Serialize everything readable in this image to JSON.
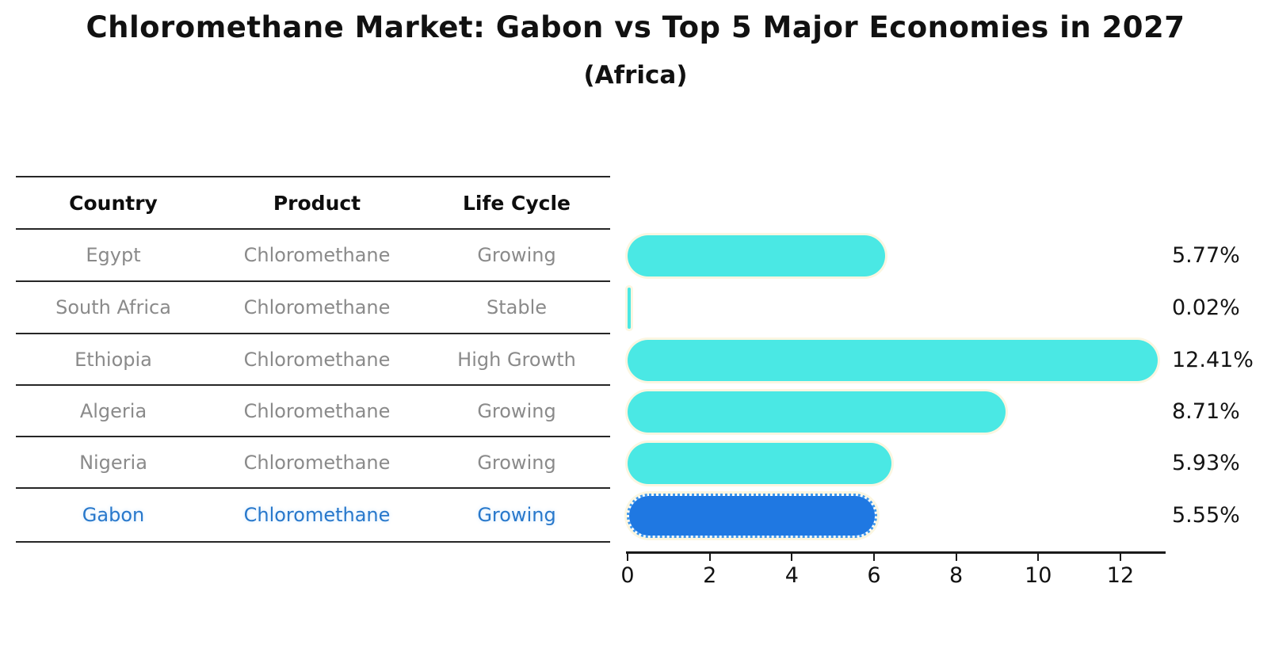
{
  "title": "Chloromethane Market: Gabon vs Top 5 Major Economies in 2027",
  "subtitle": "(Africa)",
  "table": {
    "headers": [
      "Country",
      "Product",
      "Life Cycle"
    ],
    "rows": [
      {
        "country": "Egypt",
        "product": "Chloromethane",
        "life_cycle": "Growing",
        "highlight": false
      },
      {
        "country": "South Africa",
        "product": "Chloromethane",
        "life_cycle": "Stable",
        "highlight": false
      },
      {
        "country": "Ethiopia",
        "product": "Chloromethane",
        "life_cycle": "High Growth",
        "highlight": false
      },
      {
        "country": "Algeria",
        "product": "Chloromethane",
        "life_cycle": "Growing",
        "highlight": false
      },
      {
        "country": "Nigeria",
        "product": "Chloromethane",
        "life_cycle": "Growing",
        "highlight": false
      },
      {
        "country": "Gabon",
        "product": "Chloromethane",
        "life_cycle": "Growing",
        "highlight": true
      }
    ]
  },
  "chart_data": {
    "type": "bar",
    "orientation": "horizontal",
    "title": "Chloromethane Market: Gabon vs Top 5 Major Economies in 2027",
    "subtitle": "(Africa)",
    "categories": [
      "Egypt",
      "South Africa",
      "Ethiopia",
      "Algeria",
      "Nigeria",
      "Gabon"
    ],
    "values": [
      5.77,
      0.02,
      12.41,
      8.71,
      5.93,
      5.55
    ],
    "value_labels": [
      "5.77%",
      "0.02%",
      "12.41%",
      "8.71%",
      "5.93%",
      "5.55%"
    ],
    "xticks": [
      0,
      2,
      4,
      6,
      8,
      10,
      12
    ],
    "xlim": [
      0,
      13.1
    ],
    "grid": false,
    "legend": "none",
    "highlight_index": 5,
    "colors": {
      "bar": "#4ae8e4",
      "highlight_bar": "#1f78e2",
      "highlight_text": "#2878cb",
      "table_text": "#8a8a8a",
      "header_text": "#0e0e0e",
      "bar_outline": "#fbf6e1",
      "axis": "#1a1a1a"
    }
  }
}
